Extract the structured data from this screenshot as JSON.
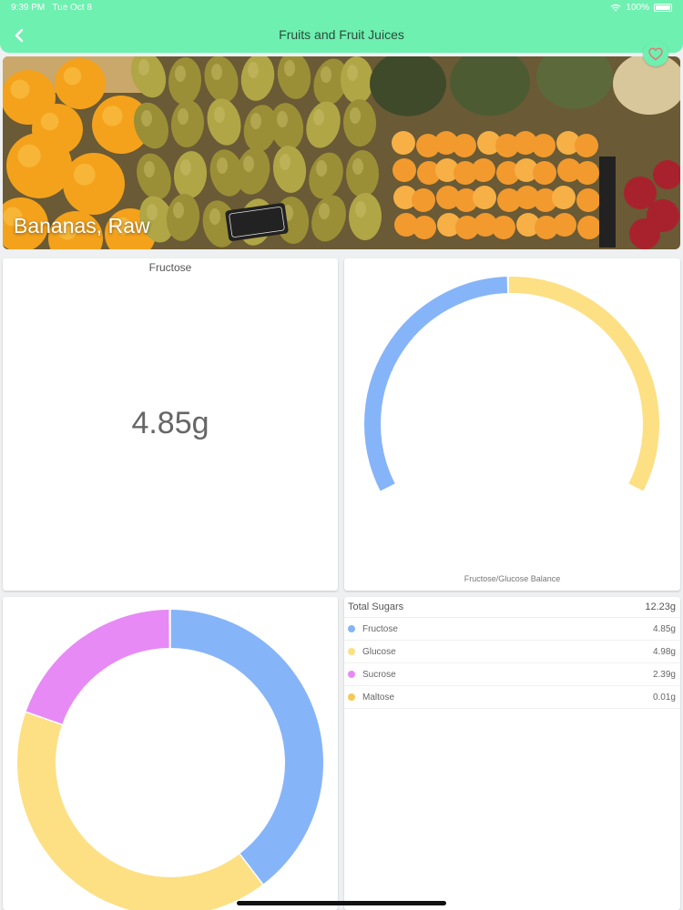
{
  "status_bar": {
    "time": "9:39 PM",
    "date": "Tue Oct 8",
    "battery": "100%"
  },
  "nav": {
    "title": "Fruits and Fruit Juices",
    "back_icon": "chevron-left-icon",
    "favorite_icon": "heart-icon"
  },
  "hero": {
    "title": "Bananas, Raw"
  },
  "fructose_card": {
    "label": "Fructose",
    "value": "4.85g"
  },
  "balance_card": {
    "caption": "Fructose/Glucose Balance"
  },
  "colors": {
    "accent": "#6ef0b0",
    "fructose": "#86b4f8",
    "glucose": "#fde084",
    "sucrose": "#e78af5",
    "maltose": "#f5c85a"
  },
  "sugars_table": {
    "total_label": "Total Sugars",
    "total_value": "12.23g",
    "rows": [
      {
        "name": "Fructose",
        "value": "4.85g"
      },
      {
        "name": "Glucose",
        "value": "4.98g"
      },
      {
        "name": "Sucrose",
        "value": "2.39g"
      },
      {
        "name": "Maltose",
        "value": "0.01g"
      }
    ]
  },
  "chart_data": [
    {
      "type": "gauge",
      "series": [
        {
          "name": "Fructose",
          "value": 4.85
        },
        {
          "name": "Glucose",
          "value": 4.98
        }
      ]
    },
    {
      "type": "pie",
      "categories": [
        "Fructose",
        "Glucose",
        "Sucrose",
        "Maltose"
      ],
      "values": [
        4.85,
        4.98,
        2.39,
        0.01
      ]
    }
  ]
}
